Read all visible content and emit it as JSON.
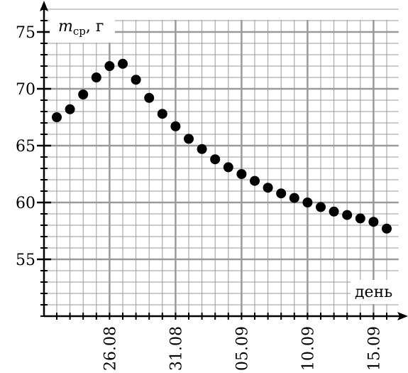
{
  "chart_data": {
    "type": "scatter",
    "y_label": {
      "symbol": "m",
      "subscript": "ср",
      "unit": ", г"
    },
    "x_label": "день",
    "categories": [
      null,
      null,
      null,
      null,
      "26.08",
      null,
      null,
      null,
      null,
      "31.08",
      null,
      null,
      null,
      null,
      "05.09",
      null,
      null,
      null,
      null,
      "10.09",
      null,
      null,
      null,
      null,
      "15.09",
      null
    ],
    "values": [
      67.5,
      68.2,
      69.5,
      71.0,
      72.0,
      72.2,
      70.8,
      69.2,
      67.8,
      66.7,
      65.6,
      64.7,
      63.8,
      63.1,
      62.5,
      61.9,
      61.3,
      60.8,
      60.4,
      60.0,
      59.6,
      59.2,
      58.9,
      58.6,
      58.3,
      57.7
    ],
    "color": "#000000",
    "ylim": [
      50,
      77
    ],
    "yticks": [
      55,
      60,
      65,
      70,
      75
    ],
    "grid": true
  }
}
